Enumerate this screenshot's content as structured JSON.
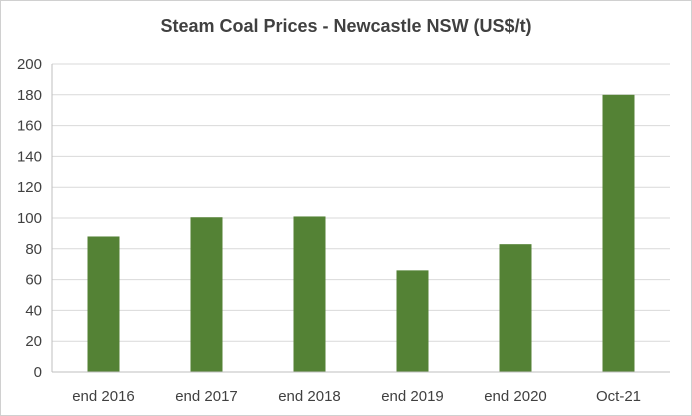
{
  "chart_data": {
    "type": "bar",
    "title": "Steam Coal Prices - Newcastle NSW (US$/t)",
    "categories": [
      "end 2016",
      "end 2017",
      "end 2018",
      "end 2019",
      "end 2020",
      "Oct-21"
    ],
    "values": [
      88,
      100.5,
      101,
      66,
      83,
      180
    ],
    "ylim": [
      0,
      200
    ],
    "yticks": [
      0,
      20,
      40,
      60,
      80,
      100,
      120,
      140,
      160,
      180,
      200
    ],
    "xlabel": "",
    "ylabel": "",
    "grid": true,
    "legend": "none",
    "bar_color": "#548235",
    "grid_color": "#d9d9d9",
    "axis_color": "#bfbfbf"
  }
}
